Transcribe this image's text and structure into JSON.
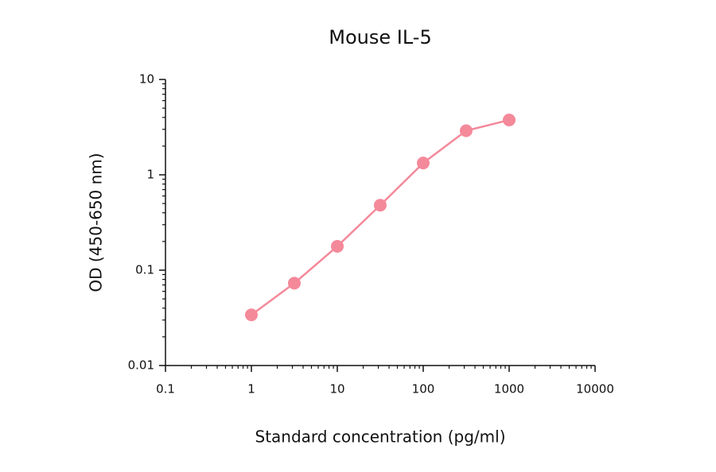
{
  "chart_data": {
    "type": "line",
    "title": "Mouse IL-5",
    "x_label": "Standard concentration (pg/ml)",
    "y_label": "OD (450-650 nm)",
    "x_scale": "log",
    "y_scale": "log",
    "xlim": [
      0.1,
      10000
    ],
    "xticks": [
      0.1,
      1,
      10,
      100,
      1000,
      10000
    ],
    "ylim": [
      0.01,
      10
    ],
    "yticks": [
      0.01,
      0.1,
      1,
      10
    ],
    "grid": false,
    "series": [
      {
        "color": "#f4899a",
        "x": [
          1,
          3.16,
          10,
          31.6,
          100,
          316,
          1000
        ],
        "values": [
          0.034,
          0.073,
          0.178,
          0.48,
          1.33,
          2.9,
          3.76
        ]
      }
    ]
  }
}
